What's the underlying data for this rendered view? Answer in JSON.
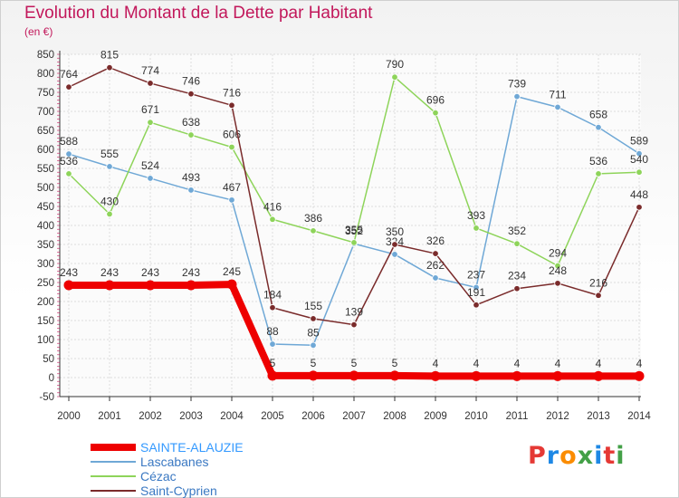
{
  "page": {
    "title": "Evolution du Montant de la Dette par Habitant",
    "unit": "(en €)",
    "logo_letters": [
      "P",
      "r",
      "o",
      "x",
      "i",
      "t",
      "i"
    ],
    "logo_colors": [
      "#e53935",
      "#1e88e5",
      "#fb8c00",
      "#43a047",
      "#1e88e5",
      "#e53935",
      "#43a047"
    ]
  },
  "chart_data": {
    "type": "line",
    "title": "Evolution du Montant de la Dette par Habitant",
    "ylabel": "(en €)",
    "xlabel": "",
    "x": [
      "2000",
      "2001",
      "2002",
      "2003",
      "2004",
      "2005",
      "2006",
      "2007",
      "2008",
      "2009",
      "2010",
      "2011",
      "2012",
      "2013",
      "2014"
    ],
    "ylim": [
      -50,
      850
    ],
    "yticks": [
      -50,
      0,
      50,
      100,
      150,
      200,
      250,
      300,
      350,
      400,
      450,
      500,
      550,
      600,
      650,
      700,
      750,
      800,
      850
    ],
    "grid": true,
    "legend_position": "bottom-left",
    "series": [
      {
        "name": "SAINTE-ALAUZIE",
        "color": "#ee0000",
        "values": [
          243,
          243,
          243,
          243,
          245,
          5,
          5,
          5,
          5,
          4,
          4,
          4,
          4,
          4,
          4
        ]
      },
      {
        "name": "Lascabanes",
        "color": "#6fa8d6",
        "values": [
          588,
          555,
          524,
          493,
          467,
          88,
          85,
          352,
          324,
          262,
          237,
          739,
          711,
          658,
          589
        ]
      },
      {
        "name": "Cézac",
        "color": "#8ed45a",
        "values": [
          536,
          430,
          671,
          638,
          606,
          416,
          386,
          355,
          null,
          696,
          393,
          352,
          294,
          536,
          540
        ]
      },
      {
        "name": "Saint-Cyprien",
        "color": "#7a2b2b",
        "values": [
          764,
          815,
          774,
          746,
          716,
          184,
          155,
          139,
          350,
          326,
          191,
          234,
          248,
          216,
          448
        ]
      }
    ],
    "extra_points": [
      {
        "series": "Cézac",
        "x": "2008",
        "value": 790
      }
    ]
  }
}
